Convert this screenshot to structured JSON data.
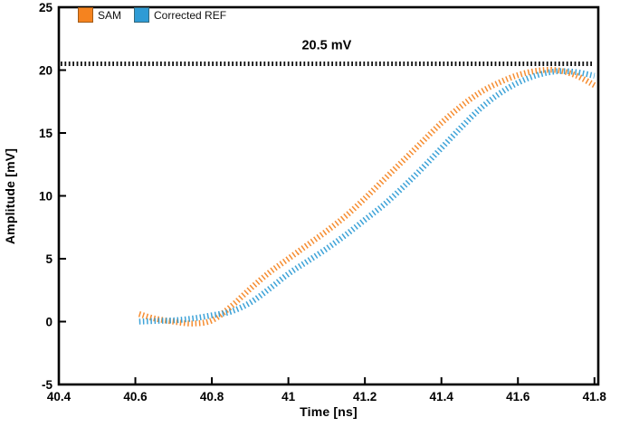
{
  "chart_data": {
    "type": "line",
    "annotation": "20.5 mV",
    "threshold_value": 20.5,
    "threshold_color": "#111111",
    "xlabel": "Time [ns]",
    "ylabel": "Amplitude [mV]",
    "xlim": [
      40.4,
      41.81
    ],
    "ylim": [
      -5,
      25
    ],
    "x_ticks": [
      40.4,
      40.6,
      40.8,
      41,
      41.2,
      41.4,
      41.6,
      41.8
    ],
    "x_tick_labels": [
      "40.4",
      "40.6",
      "40.8",
      "41",
      "41.2",
      "41.4",
      "41.6",
      "41.8"
    ],
    "y_ticks": [
      -5,
      0,
      5,
      10,
      15,
      20,
      25
    ],
    "y_tick_labels": [
      "-5",
      "0",
      "5",
      "10",
      "15",
      "20",
      "25"
    ],
    "grid": false,
    "legend_position": "top-left",
    "x": [
      40.61,
      40.65,
      40.7,
      40.75,
      40.8,
      40.85,
      40.9,
      40.95,
      41.0,
      41.05,
      41.1,
      41.15,
      41.2,
      41.25,
      41.3,
      41.35,
      41.4,
      41.45,
      41.5,
      41.55,
      41.6,
      41.65,
      41.7,
      41.75,
      41.8
    ],
    "series": [
      {
        "name": "SAM",
        "color": "#F5831F",
        "values": [
          0.6,
          0.25,
          0.0,
          -0.15,
          0.1,
          1.2,
          2.6,
          3.9,
          5.0,
          6.1,
          7.2,
          8.4,
          9.8,
          11.3,
          12.8,
          14.3,
          15.8,
          17.1,
          18.2,
          19.0,
          19.6,
          19.95,
          20.0,
          19.6,
          18.8
        ]
      },
      {
        "name": "Corrected REF",
        "color": "#2E9BD5",
        "values": [
          0.0,
          0.05,
          0.1,
          0.25,
          0.5,
          0.8,
          1.5,
          2.6,
          3.8,
          4.8,
          5.8,
          6.9,
          8.1,
          9.3,
          10.7,
          12.2,
          13.8,
          15.4,
          16.9,
          18.1,
          19.0,
          19.6,
          19.9,
          19.85,
          19.55
        ]
      }
    ]
  }
}
